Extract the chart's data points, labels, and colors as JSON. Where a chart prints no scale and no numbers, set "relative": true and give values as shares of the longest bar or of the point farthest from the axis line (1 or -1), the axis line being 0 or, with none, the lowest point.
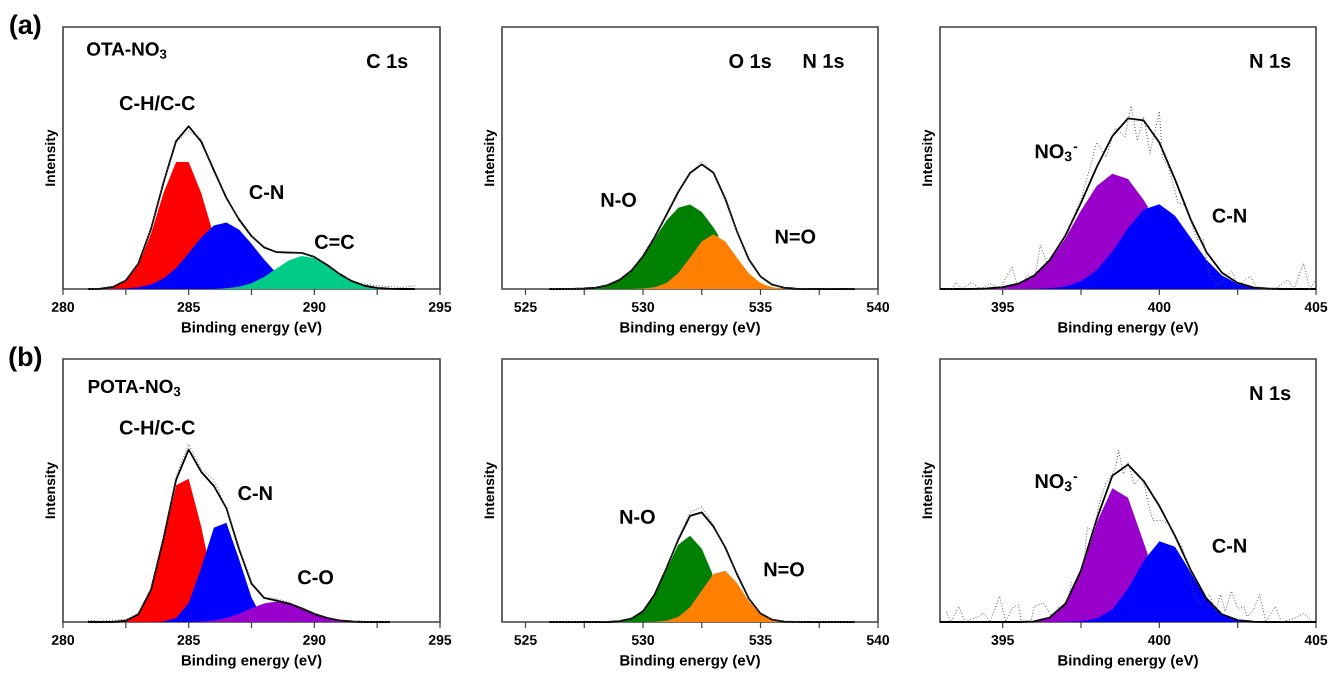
{
  "chart_data": [
    {
      "type": "area",
      "relative": true,
      "tick_labels": "x",
      "xlabel": "Binding energy (eV)",
      "ylabel": "Intensity",
      "xlim": [
        280,
        295
      ],
      "xticks": [
        280,
        {
          "value": 282.5,
          "label": null
        },
        285,
        {
          "value": 287.5,
          "label": null
        },
        290,
        {
          "value": 292.5,
          "label": null
        },
        295
      ],
      "annotations": [
        "(a)",
        "OTA-NO$_{3}$",
        "C 1s"
      ],
      "x": [
        281,
        281.5,
        282,
        282.5,
        283,
        283.5,
        284,
        284.5,
        285,
        285.5,
        286,
        286.5,
        287,
        287.5,
        288,
        288.5,
        289,
        289.5,
        290,
        290.5,
        291,
        291.5,
        292,
        292.5,
        293,
        293.5,
        294
      ],
      "series": [
        {
          "name": "C-H/C-C",
          "color": "#ff0000",
          "x": [
            281,
            281.5,
            282,
            282.5,
            283,
            283.5,
            284,
            284.5,
            285,
            285.5,
            285.9
          ],
          "values": [
            0,
            0.002,
            0.012,
            0.049,
            0.147,
            0.34,
            0.59,
            0.78,
            0.78,
            0.59,
            0.38
          ]
        },
        {
          "name": "C-N",
          "color": "#0000ff",
          "x": [
            281,
            281.5,
            282,
            282.5,
            283,
            283.5,
            284,
            284.5,
            285,
            285.5,
            286,
            286.5,
            287,
            287.5,
            288,
            288.4
          ],
          "values": [
            0,
            0,
            0.001,
            0.003,
            0.01,
            0.028,
            0.065,
            0.129,
            0.219,
            0.316,
            0.39,
            0.409,
            0.365,
            0.278,
            0.181,
            0.114
          ]
        },
        {
          "name": "C=C",
          "color": "#00cc88",
          "values": [
            0,
            0,
            0,
            0,
            0,
            0,
            0,
            0,
            0,
            0,
            0,
            0.004,
            0.014,
            0.035,
            0.073,
            0.126,
            0.177,
            0.203,
            0.191,
            0.147,
            0.093,
            0.048,
            0.02,
            0.007,
            0.002,
            0,
            0
          ]
        },
        {
          "type": "line",
          "color": "#000000",
          "values": [
            0,
            0.002,
            0.013,
            0.052,
            0.157,
            0.368,
            0.655,
            0.909,
            1.0,
            0.906,
            0.73,
            0.56,
            0.428,
            0.325,
            0.256,
            0.226,
            0.224,
            0.222,
            0.197,
            0.149,
            0.093,
            0.048,
            0.02,
            0.007,
            0.002,
            0,
            0
          ]
        },
        {
          "type": "line",
          "line_style": "dotted",
          "color": "#555555",
          "values": [
            0,
            0.005,
            0.015,
            0.05,
            0.16,
            0.37,
            0.66,
            0.9,
            0.97,
            0.92,
            0.72,
            0.57,
            0.42,
            0.33,
            0.26,
            0.23,
            0.23,
            0.22,
            0.2,
            0.15,
            0.09,
            0.05,
            0.03,
            0.02,
            0.015,
            0.01,
            0.02
          ]
        }
      ]
    },
    {
      "type": "area",
      "relative": true,
      "tick_labels": "x",
      "xlabel": "Binding energy (eV)",
      "ylabel": "Intensity",
      "xlim": [
        524,
        540
      ],
      "xticks": [
        525,
        {
          "value": 527.5,
          "label": null
        },
        530,
        {
          "value": 532.5,
          "label": null
        },
        535,
        {
          "value": 537.5,
          "label": null
        },
        540
      ],
      "annotations": [
        "O 1s",
        "N 1s"
      ],
      "x": [
        526,
        526.5,
        527,
        527.5,
        528,
        528.5,
        529,
        529.5,
        530,
        530.5,
        531,
        531.5,
        532,
        532.5,
        533,
        533.5,
        534,
        534.5,
        535,
        535.5,
        536,
        536.5,
        537,
        537.5,
        538,
        538.5,
        539
      ],
      "series": [
        {
          "name": "N-O",
          "color": "#008000",
          "x": [
            526,
            526.5,
            527,
            527.5,
            528,
            528.5,
            529,
            529.5,
            530,
            530.5,
            531,
            531.5,
            532,
            532.5,
            533,
            533.2
          ],
          "values": [
            0,
            0,
            0.001,
            0.004,
            0.011,
            0.03,
            0.071,
            0.143,
            0.253,
            0.394,
            0.535,
            0.636,
            0.662,
            0.603,
            0.481,
            0.42
          ]
        },
        {
          "name": "N=O",
          "color": "#ff8000",
          "values": [
            0,
            0,
            0,
            0,
            0,
            0,
            0,
            0,
            0.003,
            0.013,
            0.046,
            0.123,
            0.245,
            0.372,
            0.428,
            0.372,
            0.245,
            0.123,
            0.046,
            0.013,
            0.003,
            0,
            0,
            0,
            0,
            0,
            0
          ]
        },
        {
          "type": "line",
          "color": "#000000",
          "values": [
            0,
            0,
            0.001,
            0.004,
            0.011,
            0.03,
            0.071,
            0.143,
            0.256,
            0.407,
            0.581,
            0.759,
            0.907,
            0.975,
            0.909,
            0.707,
            0.45,
            0.233,
            0.097,
            0.034,
            0.011,
            0.002,
            0.001,
            0,
            0,
            0,
            0
          ]
        },
        {
          "type": "line",
          "line_style": "dotted",
          "color": "#555555",
          "values": [
            0.005,
            0,
            0.003,
            0.006,
            0.012,
            0.03,
            0.075,
            0.14,
            0.26,
            0.41,
            0.58,
            0.76,
            0.91,
            1.0,
            0.91,
            0.71,
            0.45,
            0.23,
            0.1,
            0.035,
            0.012,
            0.005,
            0.003,
            0,
            0.005,
            0,
            0.005
          ]
        }
      ]
    },
    {
      "type": "area",
      "relative": true,
      "tick_labels": "x",
      "xlabel": "Binding energy (eV)",
      "ylabel": "Intensity",
      "xlim": [
        393,
        405
      ],
      "xticks": [
        395,
        {
          "value": 397.5,
          "label": null
        },
        400,
        {
          "value": 402.5,
          "label": null
        },
        405
      ],
      "annotations": [
        "N 1s"
      ],
      "x": [
        393,
        393.5,
        394,
        394.5,
        395,
        395.5,
        396,
        396.5,
        397,
        397.5,
        398,
        398.5,
        399,
        399.5,
        400,
        400.5,
        401,
        401.5,
        402,
        402.5,
        403,
        403.5,
        404,
        404.5,
        405
      ],
      "series": [
        {
          "name": "NO$_{3}$$^{-}$",
          "color": "#9900cc",
          "x": [
            393,
            393.5,
            394,
            394.5,
            395,
            395.5,
            396,
            396.5,
            397,
            397.5,
            398,
            398.5,
            399,
            399.5,
            399.63
          ],
          "values": [
            0,
            0,
            0.001,
            0.003,
            0.01,
            0.029,
            0.072,
            0.154,
            0.277,
            0.428,
            0.562,
            0.629,
            0.6,
            0.486,
            0.45
          ]
        },
        {
          "name": "C-N",
          "color": "#0000ff",
          "values": [
            0,
            0,
            0,
            0,
            0,
            0,
            0.001,
            0.004,
            0.014,
            0.042,
            0.103,
            0.205,
            0.331,
            0.434,
            0.462,
            0.4,
            0.28,
            0.16,
            0.074,
            0.028,
            0.008,
            0.002,
            0,
            0,
            0
          ]
        },
        {
          "type": "line",
          "color": "#000000",
          "values": [
            0,
            0,
            0.001,
            0.003,
            0.01,
            0.029,
            0.073,
            0.158,
            0.291,
            0.47,
            0.665,
            0.834,
            0.931,
            0.92,
            0.799,
            0.598,
            0.38,
            0.202,
            0.089,
            0.033,
            0.009,
            0.002,
            0,
            0,
            0
          ]
        },
        {
          "type": "line",
          "line_style": "dotted",
          "color": "#555555",
          "x": [
            393.2,
            393.4,
            393.5,
            393.7,
            394.0,
            394.3,
            394.6,
            394.9,
            395.3,
            395.5,
            395.8,
            396.0,
            396.2,
            396.5,
            396.9,
            397.2,
            397.5,
            397.8,
            398.0,
            398.3,
            398.6,
            398.9,
            399.1,
            399.3,
            399.5,
            399.7,
            400.0,
            400.1,
            400.3,
            400.6,
            400.8,
            401.0,
            401.2,
            401.4,
            401.6,
            401.9,
            402.3,
            402.5,
            402.9,
            403.1,
            403.4,
            403.7,
            404.1,
            404.3,
            404.6,
            404.8,
            405.0
          ],
          "values": [
            0,
            0,
            0.036,
            0,
            0.036,
            0,
            0.03,
            0,
            0.12,
            0,
            0.08,
            0.03,
            0.24,
            0.1,
            0.18,
            0.37,
            0.49,
            0.67,
            0.8,
            0.72,
            0.88,
            0.83,
            1.0,
            0.81,
            0.94,
            0.74,
            0.97,
            0.72,
            0.66,
            0.47,
            0.46,
            0.37,
            0.27,
            0.27,
            0.07,
            0.02,
            0.1,
            0.02,
            0.07,
            0.01,
            0,
            0,
            0.05,
            0,
            0.14,
            0,
            0.05
          ]
        }
      ]
    },
    {
      "type": "area",
      "relative": true,
      "tick_labels": "x",
      "xlabel": "Binding energy (eV)",
      "ylabel": "Intensity",
      "xlim": [
        280,
        295
      ],
      "xticks": [
        280,
        {
          "value": 282.5,
          "label": null
        },
        285,
        {
          "value": 287.5,
          "label": null
        },
        290,
        {
          "value": 292.5,
          "label": null
        },
        295
      ],
      "annotations": [
        "(b)",
        "POTA-NO$_{3}$"
      ],
      "x": [
        281,
        281.5,
        282,
        282.5,
        283,
        283.5,
        284,
        284.5,
        285,
        285.5,
        286,
        286.5,
        287,
        287.5,
        288,
        288.5,
        289,
        289.5,
        290,
        290.5,
        291,
        291.5,
        292,
        292.5,
        293
      ],
      "series": [
        {
          "name": "C-H/C-C",
          "color": "#ff0000",
          "x": [
            281,
            281.5,
            282,
            282.5,
            283,
            283.5,
            284,
            284.5,
            285,
            285.5,
            285.7
          ],
          "values": [
            0,
            0,
            0.001,
            0.007,
            0.044,
            0.18,
            0.467,
            0.77,
            0.806,
            0.536,
            0.4
          ]
        },
        {
          "name": "C-N",
          "color": "#0000ff",
          "x": [
            281,
            281.5,
            282,
            282.5,
            283,
            283.5,
            284,
            284.5,
            285,
            285.5,
            286,
            286.5,
            287,
            287.5,
            287.68
          ],
          "values": [
            0,
            0,
            0,
            0,
            0,
            0,
            0.003,
            0.023,
            0.107,
            0.306,
            0.531,
            0.558,
            0.356,
            0.138,
            0.09
          ]
        },
        {
          "name": "C-O",
          "color": "#9900cc",
          "values": [
            0,
            0,
            0,
            0,
            0,
            0,
            0,
            0,
            0,
            0.003,
            0.009,
            0.023,
            0.046,
            0.077,
            0.104,
            0.115,
            0.104,
            0.077,
            0.046,
            0.023,
            0.009,
            0.003,
            0,
            0,
            0
          ]
        },
        {
          "type": "line",
          "color": "#000000",
          "values": [
            0,
            0,
            0.001,
            0.007,
            0.044,
            0.18,
            0.47,
            0.8,
            0.97,
            0.845,
            0.766,
            0.641,
            0.412,
            0.216,
            0.136,
            0.12,
            0.104,
            0.077,
            0.046,
            0.023,
            0.009,
            0.003,
            0,
            0,
            0
          ]
        },
        {
          "type": "line",
          "line_style": "dotted",
          "color": "#555555",
          "values": [
            0.01,
            0.005,
            0.01,
            0.015,
            0.05,
            0.19,
            0.46,
            0.82,
            1.0,
            0.86,
            0.8,
            0.64,
            0.42,
            0.22,
            0.14,
            0.13,
            0.11,
            0.08,
            0.05,
            0.02,
            0.01,
            0.005,
            0,
            0,
            0
          ]
        }
      ]
    },
    {
      "type": "area",
      "relative": true,
      "tick_labels": "x",
      "xlabel": "Binding energy (eV)",
      "ylabel": "Intensity",
      "xlim": [
        524,
        540
      ],
      "xticks": [
        525,
        {
          "value": 527.5,
          "label": null
        },
        530,
        {
          "value": 532.5,
          "label": null
        },
        535,
        {
          "value": 537.5,
          "label": null
        },
        540
      ],
      "x": [
        526,
        526.5,
        527,
        527.5,
        528,
        528.5,
        529,
        529.5,
        530,
        530.5,
        531,
        531.5,
        532,
        532.5,
        533,
        533.5,
        534,
        534.5,
        535,
        535.5,
        536,
        536.5,
        537,
        537.5,
        538,
        538.5,
        539
      ],
      "series": [
        {
          "name": "N-O",
          "color": "#008000",
          "x": [
            526,
            526.5,
            527,
            527.5,
            528,
            528.5,
            529,
            529.5,
            530,
            530.5,
            531,
            531.5,
            532,
            532.5,
            532.95
          ],
          "values": [
            0,
            0,
            0,
            0,
            0,
            0,
            0.007,
            0.029,
            0.094,
            0.239,
            0.458,
            0.67,
            0.748,
            0.635,
            0.42
          ]
        },
        {
          "name": "N=O",
          "color": "#ff8000",
          "values": [
            0,
            0,
            0,
            0,
            0,
            0,
            0,
            0,
            0,
            0.002,
            0.01,
            0.043,
            0.128,
            0.274,
            0.416,
            0.445,
            0.338,
            0.182,
            0.069,
            0.019,
            0.004,
            0.001,
            0,
            0,
            0,
            0,
            0
          ]
        },
        {
          "type": "line",
          "color": "#000000",
          "values": [
            0,
            0,
            0,
            0,
            0,
            0,
            0.007,
            0.029,
            0.094,
            0.241,
            0.468,
            0.713,
            0.92,
            0.95,
            0.827,
            0.647,
            0.414,
            0.204,
            0.074,
            0.02,
            0.004,
            0.001,
            0,
            0,
            0,
            0,
            0
          ]
        },
        {
          "type": "line",
          "line_style": "dotted",
          "color": "#555555",
          "values": [
            0.005,
            0,
            0.005,
            0,
            0,
            0.005,
            0.01,
            0.03,
            0.1,
            0.24,
            0.47,
            0.72,
            0.95,
            1.0,
            0.84,
            0.64,
            0.41,
            0.2,
            0.08,
            0.02,
            0.01,
            0.005,
            0,
            0.005,
            0,
            0,
            0.005
          ]
        }
      ]
    },
    {
      "type": "area",
      "relative": true,
      "tick_labels": "x",
      "xlabel": "Binding energy (eV)",
      "ylabel": "Intensity",
      "xlim": [
        393,
        405
      ],
      "xticks": [
        395,
        {
          "value": 397.5,
          "label": null
        },
        400,
        {
          "value": 402.5,
          "label": null
        },
        405
      ],
      "annotations": [
        "N 1s"
      ],
      "x": [
        393,
        393.5,
        394,
        394.5,
        395,
        395.5,
        396,
        396.5,
        397,
        397.5,
        398,
        398.5,
        399,
        399.5,
        400,
        400.5,
        401,
        401.5,
        402,
        402.5,
        403,
        403.5,
        404,
        404.5,
        405
      ],
      "series": [
        {
          "name": "NO$_{3}$$^{-}$",
          "color": "#9900cc",
          "x": [
            393,
            393.5,
            394,
            394.5,
            395,
            395.5,
            396,
            396.5,
            397,
            397.5,
            398,
            398.5,
            399,
            399.5,
            399.63
          ],
          "values": [
            0,
            0,
            0,
            0,
            0,
            0,
            0.004,
            0.026,
            0.105,
            0.297,
            0.578,
            0.778,
            0.723,
            0.463,
            0.395
          ]
        },
        {
          "name": "C-N",
          "color": "#0000ff",
          "values": [
            0,
            0,
            0,
            0,
            0,
            0,
            0,
            0,
            0.001,
            0.004,
            0.02,
            0.073,
            0.193,
            0.357,
            0.47,
            0.438,
            0.29,
            0.135,
            0.045,
            0.011,
            0.002,
            0,
            0,
            0,
            0
          ]
        },
        {
          "type": "line",
          "color": "#000000",
          "values": [
            0,
            0,
            0,
            0,
            0,
            0,
            0.004,
            0.026,
            0.106,
            0.301,
            0.598,
            0.851,
            0.916,
            0.82,
            0.675,
            0.501,
            0.303,
            0.137,
            0.045,
            0.011,
            0.002,
            0,
            0,
            0,
            0
          ]
        },
        {
          "type": "line",
          "line_style": "dotted",
          "color": "#555555",
          "x": [
            393.2,
            393.35,
            393.6,
            393.8,
            394.2,
            394.4,
            394.6,
            394.9,
            395.1,
            395.3,
            395.5,
            395.6,
            395.9,
            396.0,
            396.3,
            396.6,
            396.8,
            397.0,
            397.2,
            397.4,
            397.6,
            397.7,
            397.9,
            398.1,
            398.3,
            398.5,
            398.6,
            398.7,
            398.85,
            399.0,
            399.2,
            399.4,
            399.5,
            399.7,
            399.8,
            400.0,
            400.1,
            400.3,
            400.5,
            400.7,
            400.9,
            401.1,
            401.3,
            401.6,
            401.8,
            401.95,
            402.1,
            402.3,
            402.5,
            402.7,
            402.8,
            403.0,
            403.2,
            403.4,
            403.7,
            403.9,
            404.3,
            404.6,
            404.9
          ],
          "values": [
            0.06,
            0,
            0.09,
            0,
            0.03,
            0.05,
            0,
            0.15,
            0,
            0.08,
            0.1,
            0,
            0,
            0.09,
            0.11,
            0.02,
            0.09,
            0.06,
            0.23,
            0.21,
            0.35,
            0.55,
            0.53,
            0.7,
            0.81,
            0.86,
            0.9,
            1.0,
            0.86,
            0.93,
            0.8,
            0.84,
            0.81,
            0.65,
            0.59,
            0.59,
            0.59,
            0.57,
            0.49,
            0.45,
            0.34,
            0.16,
            0.1,
            0.16,
            0.06,
            0.16,
            0.06,
            0.18,
            0.08,
            0.09,
            0.03,
            0.07,
            0.16,
            0,
            0.09,
            0,
            0.02,
            0.05,
            0
          ]
        }
      ]
    }
  ]
}
